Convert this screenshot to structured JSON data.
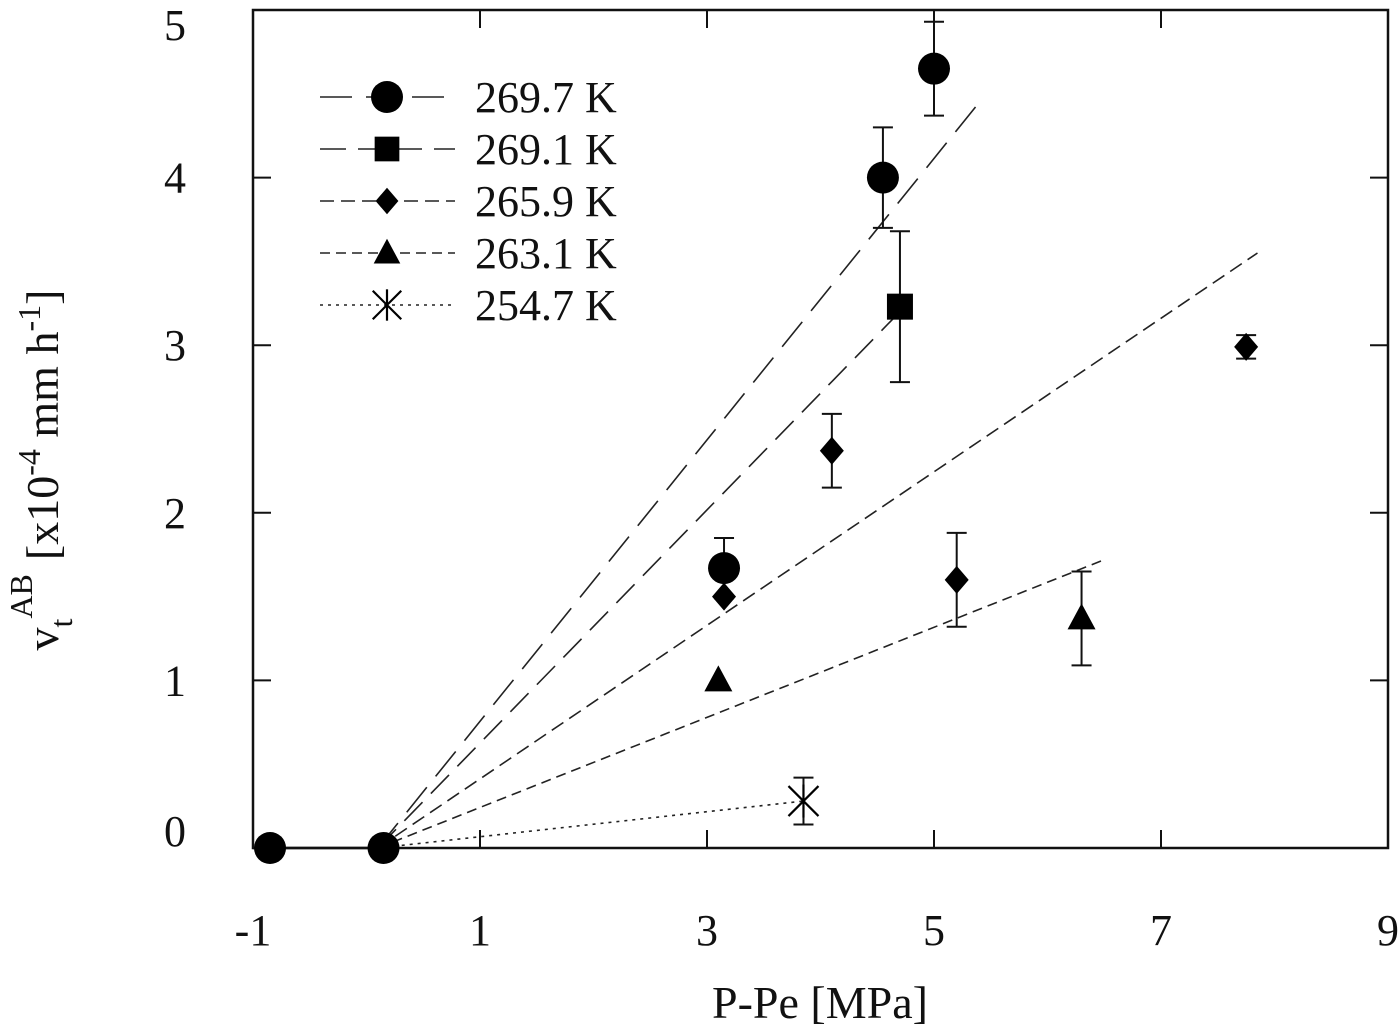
{
  "chart_data": {
    "type": "scatter",
    "xlabel": "P-Pe   [MPa]",
    "ylabel": {
      "base": "v",
      "sub": "t",
      "sup": "AB",
      "unit_prefix": "[x10",
      "unit_exp": "-4",
      "unit_mid": " mm h",
      "unit_exp2": "-1",
      "unit_suffix": "]"
    },
    "xlim": [
      -1,
      9
    ],
    "ylim": [
      0,
      5
    ],
    "xticks": [
      {
        "value": -1,
        "label": "-1"
      },
      {
        "value": 1,
        "label": "1"
      },
      {
        "value": 3,
        "label": "3"
      },
      {
        "value": 5,
        "label": "5"
      },
      {
        "value": 7,
        "label": "7"
      },
      {
        "value": 9,
        "label": "9"
      }
    ],
    "yticks": [
      {
        "value": 0,
        "label": "0"
      },
      {
        "value": 1,
        "label": "1"
      },
      {
        "value": 2,
        "label": "2"
      },
      {
        "value": 3,
        "label": "3"
      },
      {
        "value": 4,
        "label": "4"
      },
      {
        "value": 5,
        "label": "5"
      }
    ],
    "legend_position": "top-left",
    "grid": false,
    "zero_line": {
      "x": [
        -1,
        0.1
      ],
      "y": 0
    },
    "zero_points": [
      {
        "x": -0.85,
        "y": 0
      },
      {
        "x": 0.15,
        "y": 0
      }
    ],
    "series": [
      {
        "name": "269.7 K",
        "marker": "circle",
        "dash": "32,14",
        "fit": {
          "x0": 0.1,
          "y0": 0,
          "x1": 5.4,
          "y1": 4.45
        },
        "points": [
          {
            "x": 3.15,
            "y": 1.67,
            "err": 0.18
          },
          {
            "x": 4.55,
            "y": 4.0,
            "err": 0.3
          },
          {
            "x": 5.0,
            "y": 4.65,
            "err": 0.28
          }
        ]
      },
      {
        "name": "269.1 K",
        "marker": "square",
        "dash": "26,12",
        "fit": {
          "x0": 0.1,
          "y0": 0,
          "x1": 4.7,
          "y1": 3.2
        },
        "points": [
          {
            "x": 4.7,
            "y": 3.23,
            "err": 0.45
          }
        ]
      },
      {
        "name": "265.9 K",
        "marker": "diamond",
        "dash": "14,7",
        "fit": {
          "x0": 0.1,
          "y0": 0,
          "x1": 7.85,
          "y1": 3.55
        },
        "points": [
          {
            "x": 3.15,
            "y": 1.5,
            "err": 0
          },
          {
            "x": 4.1,
            "y": 2.37,
            "err": 0.22
          },
          {
            "x": 5.2,
            "y": 1.6,
            "err": 0.28
          },
          {
            "x": 7.75,
            "y": 2.99,
            "err": 0.07
          }
        ]
      },
      {
        "name": "263.1 K",
        "marker": "triangle",
        "dash": "10,6",
        "fit": {
          "x0": 0.1,
          "y0": 0,
          "x1": 6.5,
          "y1": 1.72
        },
        "points": [
          {
            "x": 3.1,
            "y": 1.0,
            "err": 0
          },
          {
            "x": 6.3,
            "y": 1.37,
            "err": 0.28
          }
        ]
      },
      {
        "name": "254.7 K",
        "marker": "asterisk",
        "dash": "3,5",
        "fit": {
          "x0": 0.1,
          "y0": 0,
          "x1": 3.85,
          "y1": 0.28
        },
        "points": [
          {
            "x": 3.85,
            "y": 0.28,
            "err": 0.14
          }
        ]
      }
    ]
  }
}
